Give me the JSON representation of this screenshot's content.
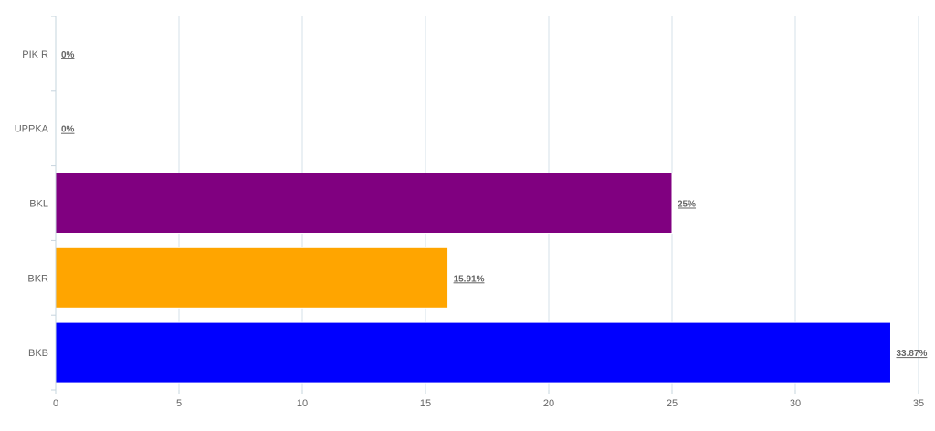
{
  "chart_data": {
    "type": "bar",
    "orientation": "horizontal",
    "categories": [
      "PIK R",
      "UPPKA",
      "BKL",
      "BKR",
      "BKB"
    ],
    "values": [
      0,
      0,
      25,
      15.91,
      33.87
    ],
    "data_labels": [
      "0%",
      "0%",
      "25%",
      "15.91%",
      "33.87%"
    ],
    "colors": [
      "#800080",
      "#800080",
      "#800080",
      "#FFA500",
      "#0000FF"
    ],
    "xlim": [
      0,
      35
    ],
    "xticks": [
      "0",
      "5",
      "10",
      "15",
      "20",
      "25",
      "30",
      "35"
    ],
    "grid": true,
    "title": "",
    "xlabel": "",
    "ylabel": ""
  }
}
